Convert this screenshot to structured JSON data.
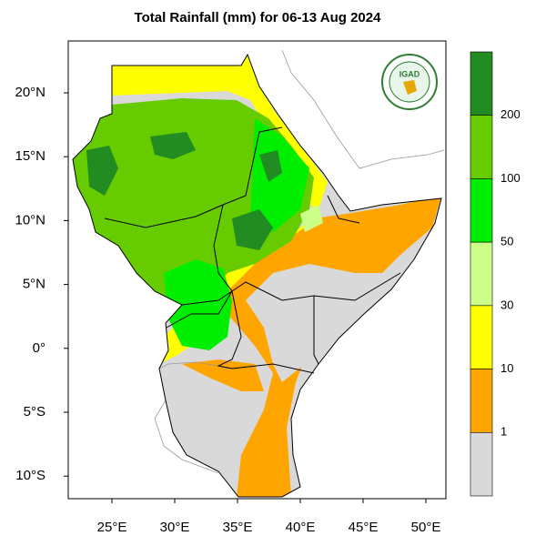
{
  "map": {
    "title": "Total Rainfall (mm) for 06-13 Aug 2024",
    "logo": "IGAD",
    "lon_labels": [
      "25°E",
      "30°E",
      "35°E",
      "40°E",
      "45°E",
      "50°E"
    ],
    "lat_labels": [
      "20°N",
      "15°N",
      "10°N",
      "5°N",
      "0°",
      "5°S",
      "10°S"
    ],
    "legend": {
      "labels": [
        "200",
        "100",
        "50",
        "30",
        "10",
        "1"
      ],
      "colors": [
        "#228b22",
        "#66cc00",
        "#00ee00",
        "#ccff88",
        "#ffff00",
        "#ffa500",
        "#d9d9d9"
      ]
    }
  }
}
